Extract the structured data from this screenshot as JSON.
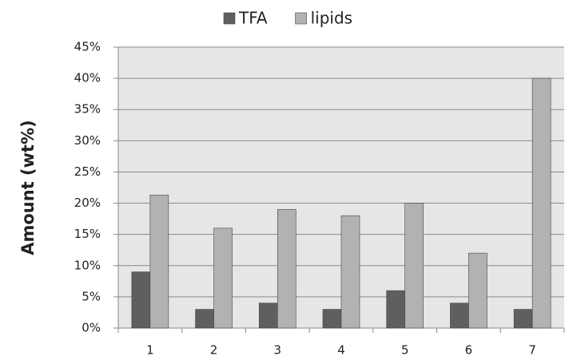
{
  "chart_data": {
    "type": "bar",
    "y_label": "Amount (wt%)",
    "categories": [
      "1",
      "2",
      "3",
      "4",
      "5",
      "6",
      "7"
    ],
    "series": [
      {
        "name": "TFA",
        "color": "#5f5f5f",
        "values": [
          9,
          3,
          4,
          3,
          6,
          4,
          3
        ]
      },
      {
        "name": "lipids",
        "color": "#b2b2b2",
        "values": [
          21.3,
          16,
          19,
          18,
          20,
          12,
          40
        ]
      }
    ],
    "ylim": [
      0,
      45
    ],
    "yticks": [
      {
        "value": 0,
        "label": "0%"
      },
      {
        "value": 5,
        "label": "5%"
      },
      {
        "value": 10,
        "label": "10%"
      },
      {
        "value": 15,
        "label": "15%"
      },
      {
        "value": 20,
        "label": "20%"
      },
      {
        "value": 25,
        "label": "25%"
      },
      {
        "value": 30,
        "label": "30%"
      },
      {
        "value": 35,
        "label": "35%"
      },
      {
        "value": 40,
        "label": "40%"
      },
      {
        "value": 45,
        "label": "45%"
      }
    ],
    "grid": true,
    "legend": "top"
  }
}
